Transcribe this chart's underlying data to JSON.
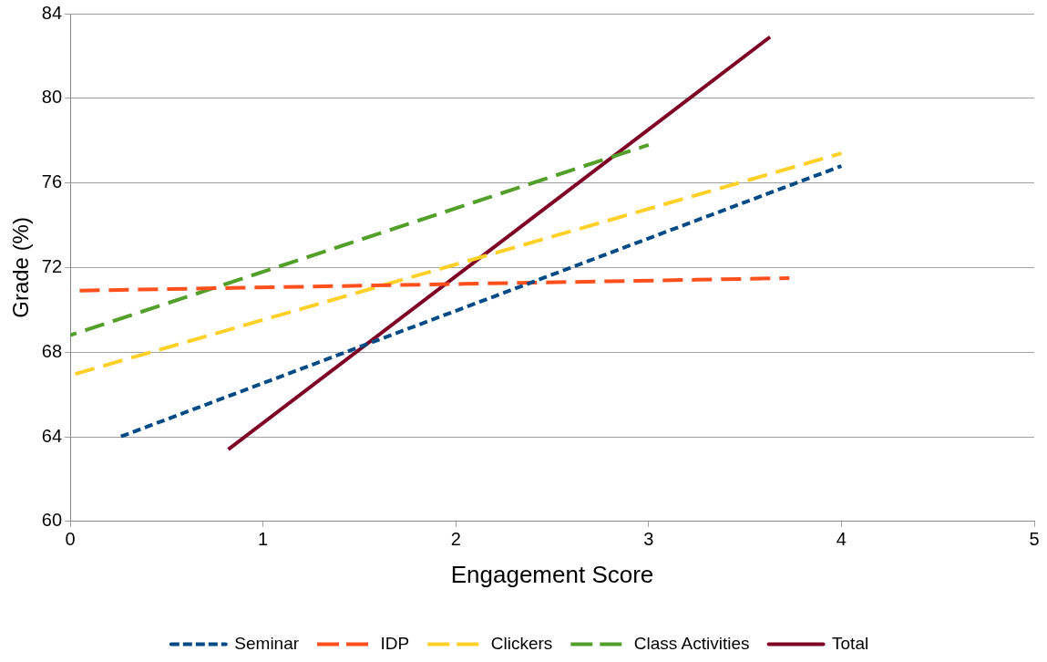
{
  "chart_data": {
    "type": "line",
    "xlabel": "Engagement Score",
    "ylabel": "Grade (%)",
    "xlim": [
      0,
      5
    ],
    "xticks": [
      0,
      1,
      2,
      3,
      4,
      5
    ],
    "ylim": [
      60,
      84
    ],
    "yticks": [
      60,
      64,
      68,
      72,
      76,
      80,
      84
    ],
    "grid": "y",
    "legend": "bottom",
    "marker": "none",
    "series": [
      {
        "name": "Seminar",
        "color": "#004a86",
        "line_style": "dotted",
        "x": [
          0.26,
          4.0
        ],
        "values": [
          64.0,
          76.8
        ]
      },
      {
        "name": "IDP",
        "color": "#ff4f1c",
        "line_style": "dashed",
        "x": [
          0,
          3.73
        ],
        "values": [
          70.9,
          71.5
        ]
      },
      {
        "name": "Clickers",
        "color": "#ffd028",
        "line_style": "dashed",
        "x": [
          0,
          4.0
        ],
        "values": [
          66.9,
          77.4
        ]
      },
      {
        "name": "Class Activities",
        "color": "#52a02a",
        "line_style": "dashed",
        "x": [
          0,
          3.0
        ],
        "values": [
          68.8,
          77.8
        ]
      },
      {
        "name": "Total",
        "color": "#7f0025",
        "line_style": "solid",
        "x": [
          0.82,
          3.63
        ],
        "values": [
          63.4,
          82.9
        ]
      }
    ]
  }
}
